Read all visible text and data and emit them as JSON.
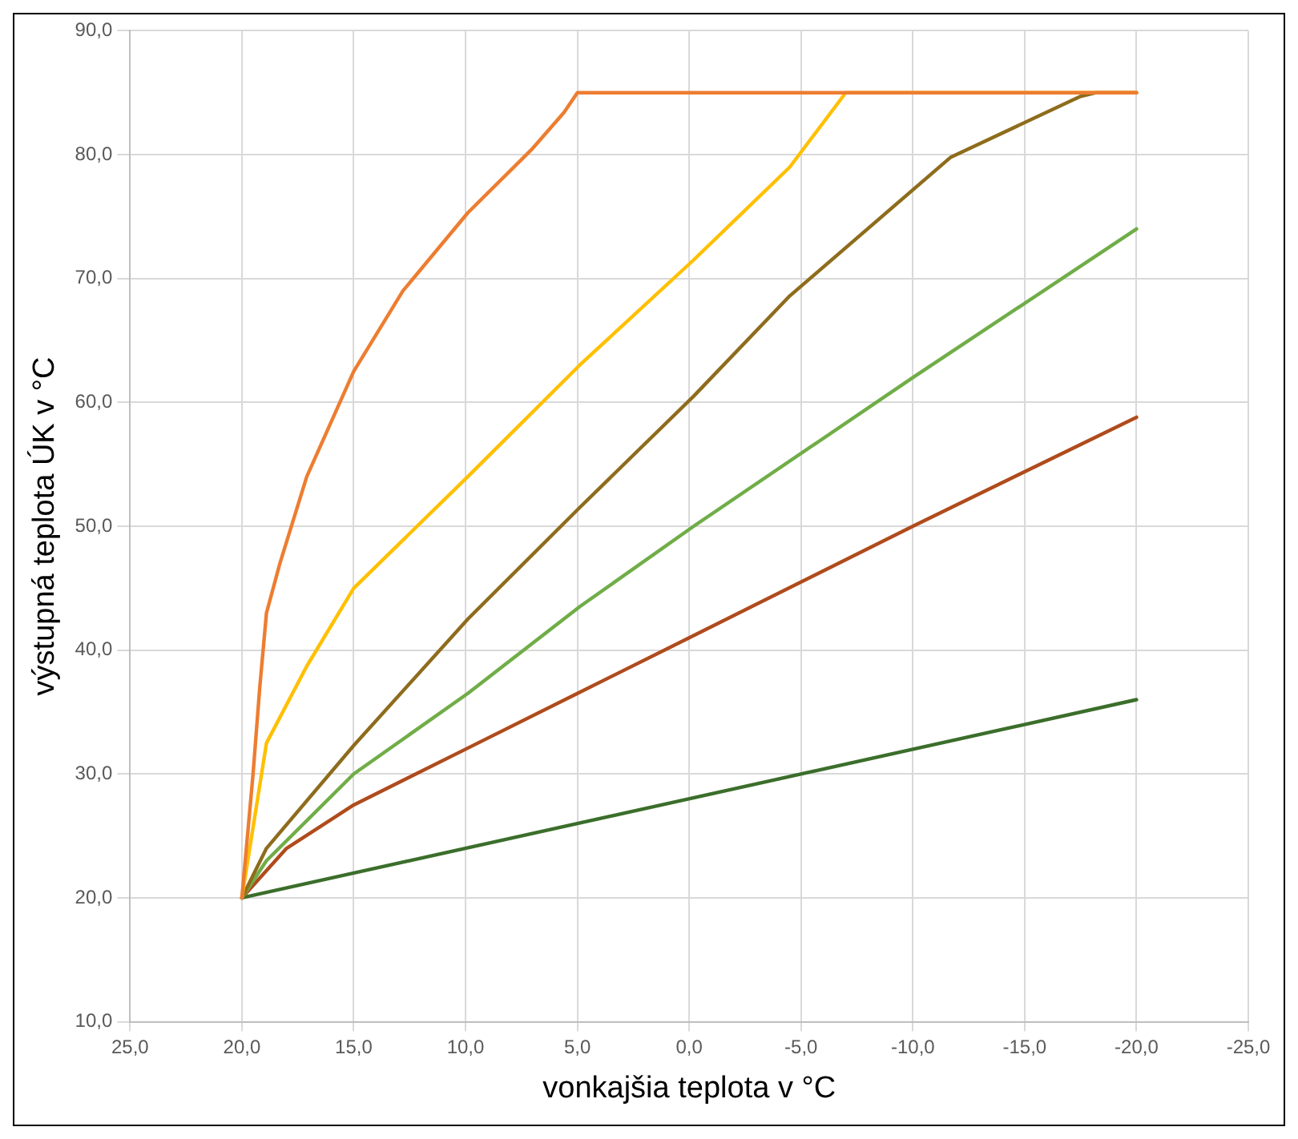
{
  "chart_data": {
    "type": "line",
    "xlabel": "vonkajšia teplota v °C",
    "ylabel": "výstupná teplota ÚK v °C",
    "xlim": [
      25,
      -25
    ],
    "xticks": [
      {
        "value": 25,
        "label": "25,0"
      },
      {
        "value": 20,
        "label": "20,0"
      },
      {
        "value": 15,
        "label": "15,0"
      },
      {
        "value": 10,
        "label": "10,0"
      },
      {
        "value": 5,
        "label": "5,0"
      },
      {
        "value": 0,
        "label": "0,0"
      },
      {
        "value": -5,
        "label": "-5,0"
      },
      {
        "value": -10,
        "label": "-10,0"
      },
      {
        "value": -15,
        "label": "-15,0"
      },
      {
        "value": -20,
        "label": "-20,0"
      },
      {
        "value": -25,
        "label": "-25,0"
      }
    ],
    "ylim": [
      10,
      90
    ],
    "yticks": [
      {
        "value": 10,
        "label": "10,0"
      },
      {
        "value": 20,
        "label": "20,0"
      },
      {
        "value": 30,
        "label": "30,0"
      },
      {
        "value": 40,
        "label": "40,0"
      },
      {
        "value": 50,
        "label": "50,0"
      },
      {
        "value": 60,
        "label": "60,0"
      },
      {
        "value": 70,
        "label": "70,0"
      },
      {
        "value": 80,
        "label": "80,0"
      },
      {
        "value": 90,
        "label": "90,0"
      }
    ],
    "grid": true,
    "legend": false,
    "marker": "none",
    "line_style": "solid",
    "series": [
      {
        "color": "#ed7d31",
        "x": [
          20,
          19.5,
          19.2,
          18.9,
          18.3,
          17.1,
          15,
          12.8,
          9.9,
          7,
          5.6,
          5,
          -20
        ],
        "values": [
          20,
          30,
          37,
          43,
          47,
          54,
          62.5,
          69,
          75.3,
          80.5,
          83.4,
          85,
          85
        ]
      },
      {
        "color": "#ffc000",
        "x": [
          20,
          18.9,
          17.1,
          15,
          9.9,
          4.9,
          -0.2,
          -4.5,
          -7,
          -20
        ],
        "values": [
          20,
          32.5,
          38.7,
          45,
          54,
          63,
          71.5,
          79,
          85,
          85
        ]
      },
      {
        "color": "#8e6c1c",
        "x": [
          20,
          18.9,
          15,
          9.9,
          4.9,
          -0.2,
          -4.5,
          -11.7,
          -17.5,
          -18.2,
          -20
        ],
        "values": [
          20,
          24,
          32.3,
          42.5,
          51.5,
          60.5,
          68.6,
          79.8,
          84.7,
          85,
          85
        ]
      },
      {
        "color": "#70ad47",
        "x": [
          20,
          18.9,
          15,
          9.9,
          4.9,
          -0.2,
          -10,
          -20
        ],
        "values": [
          20,
          23,
          30,
          36.5,
          43.5,
          50,
          62,
          74
        ]
      },
      {
        "color": "#b04b1c",
        "x": [
          20,
          18,
          15,
          10,
          5,
          0,
          -10,
          -20
        ],
        "values": [
          20,
          24,
          27.5,
          32,
          36.5,
          41,
          50,
          58.8
        ]
      },
      {
        "color": "#3b6e2b",
        "x": [
          20,
          -20
        ],
        "values": [
          20,
          36
        ]
      }
    ]
  }
}
